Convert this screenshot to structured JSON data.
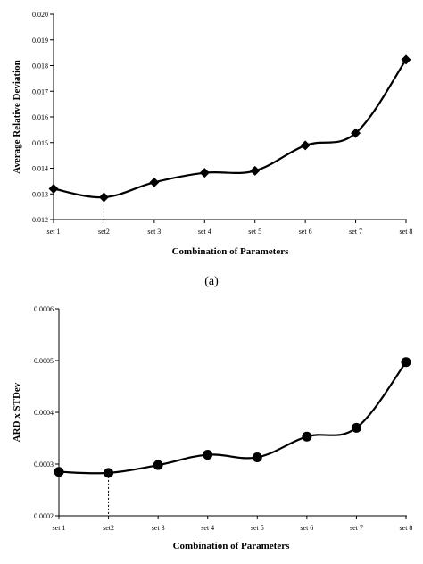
{
  "chart_data": [
    {
      "type": "line",
      "caption": "(a)",
      "xlabel": "Combination of Parameters",
      "ylabel": "Average Relative Deviation",
      "categories": [
        "set 1",
        "set2",
        "set 3",
        "set 4",
        "set 5",
        "set 6",
        "set 7",
        "set 8"
      ],
      "values": [
        0.0132,
        0.01287,
        0.01345,
        0.01382,
        0.0139,
        0.01489,
        0.01537,
        0.01823
      ],
      "yticks": [
        "0.012",
        "0.013",
        "0.014",
        "0.015",
        "0.016",
        "0.017",
        "0.018",
        "0.019",
        "0.020"
      ],
      "ylim": [
        0.012,
        0.02
      ],
      "marker": "diamond",
      "highlight_index": 1,
      "grid": false
    },
    {
      "type": "line",
      "xlabel": "Combination of Parameters",
      "ylabel": "ARD x STDev",
      "categories": [
        "set 1",
        "set2",
        "set 3",
        "set 4",
        "set 5",
        "set 6",
        "set 7",
        "set 8"
      ],
      "values": [
        0.000285,
        0.000283,
        0.000298,
        0.000318,
        0.000313,
        0.000353,
        0.00037,
        0.000497
      ],
      "yticks": [
        "0.0002",
        "0.0003",
        "0.0004",
        "0.0005",
        "0.0006"
      ],
      "ylim": [
        0.0002,
        0.0006
      ],
      "marker": "circle",
      "highlight_index": 1,
      "grid": false
    }
  ]
}
